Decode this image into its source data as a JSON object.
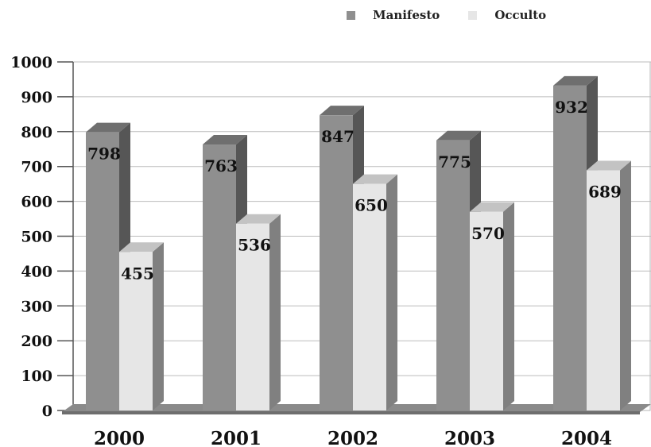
{
  "chart_data": {
    "type": "bar",
    "categories": [
      "2000",
      "2001",
      "2002",
      "2003",
      "2004"
    ],
    "series": [
      {
        "name": "Manifesto",
        "values": [
          798,
          763,
          847,
          775,
          932
        ],
        "color": "#8f8f8f"
      },
      {
        "name": "Occulto",
        "values": [
          455,
          536,
          650,
          570,
          689
        ],
        "color": "#e6e6e6"
      }
    ],
    "y_ticks": [
      "0",
      "100",
      "200",
      "300",
      "400",
      "500",
      "600",
      "700",
      "800",
      "900",
      "1000"
    ],
    "ylim": [
      0,
      1000
    ],
    "grid": true,
    "legend_position": "top-right",
    "style": "3d-columns"
  }
}
